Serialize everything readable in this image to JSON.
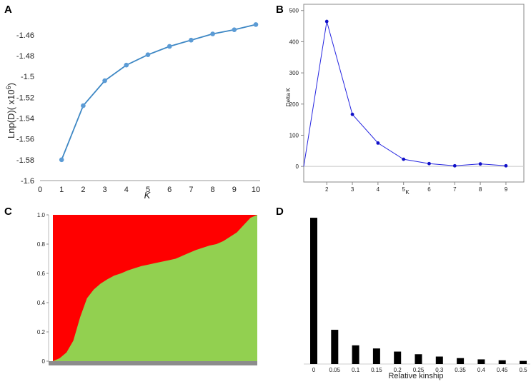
{
  "chart_data": [
    {
      "panel": "A",
      "type": "line",
      "xlabel": "K",
      "ylabel": "Lnp(D)( x10",
      "ylabel_sup": "6",
      "ylabel_close": ")",
      "x_ticks": [
        "0",
        "1",
        "2",
        "3",
        "4",
        "5",
        "6",
        "7",
        "8",
        "9",
        "10"
      ],
      "y_ticks": [
        "-1.46",
        "-1.48",
        "-1.5",
        "-1.52",
        "-1.54",
        "-1.56",
        "-1.58",
        "-1.6"
      ],
      "xlim": [
        0,
        10
      ],
      "ylim": [
        -1.6,
        -1.447
      ],
      "x": [
        1,
        2,
        3,
        4,
        5,
        6,
        7,
        8,
        9,
        10
      ],
      "y": [
        -1.58,
        -1.528,
        -1.504,
        -1.489,
        -1.479,
        -1.471,
        -1.465,
        -1.459,
        -1.455,
        -1.45
      ],
      "color": "#3d87c4",
      "grid": false
    },
    {
      "panel": "B",
      "type": "line",
      "xlabel": "K",
      "ylabel": "Delta K",
      "x_ticks": [
        "2",
        "3",
        "4",
        "5",
        "6",
        "7",
        "8",
        "9"
      ],
      "y_ticks": [
        "0",
        "100",
        "200",
        "300",
        "400",
        "500"
      ],
      "xlim": [
        1.1,
        9.7
      ],
      "ylim": [
        -50,
        520
      ],
      "x": [
        1.1,
        2,
        3,
        4,
        5,
        6,
        7,
        8,
        9
      ],
      "y": [
        0,
        465,
        167,
        75,
        23,
        9,
        2,
        8,
        2
      ],
      "color": "#2424e0",
      "grid": false
    },
    {
      "panel": "C",
      "type": "area",
      "y_ticks": [
        "1.0",
        "0.8",
        "0.6",
        "0.4",
        "0.2",
        "0"
      ],
      "ylim": [
        0,
        1
      ],
      "series": [
        {
          "color": "#ff0000"
        },
        {
          "color": "#92d050"
        }
      ],
      "boundary_fraction": [
        0.0,
        0.02,
        0.06,
        0.14,
        0.3,
        0.43,
        0.49,
        0.53,
        0.56,
        0.585,
        0.6,
        0.62,
        0.635,
        0.65,
        0.66,
        0.67,
        0.68,
        0.69,
        0.7,
        0.72,
        0.74,
        0.76,
        0.775,
        0.79,
        0.8,
        0.82,
        0.85,
        0.88,
        0.93,
        0.98,
        1.0
      ]
    },
    {
      "panel": "D",
      "type": "bar",
      "xlabel": "Relative kinship",
      "categories": [
        "0",
        "0.05",
        "0.1",
        "0.15",
        "0.2",
        "0.25",
        "0.3",
        "0.35",
        "0.4",
        "0.45",
        "0.5"
      ],
      "values": [
        0.94,
        0.22,
        0.12,
        0.1,
        0.08,
        0.063,
        0.048,
        0.038,
        0.03,
        0.024,
        0.02
      ],
      "color": "#000000"
    }
  ],
  "panel_labels": {
    "a": "A",
    "b": "B",
    "c": "C",
    "d": "D"
  }
}
